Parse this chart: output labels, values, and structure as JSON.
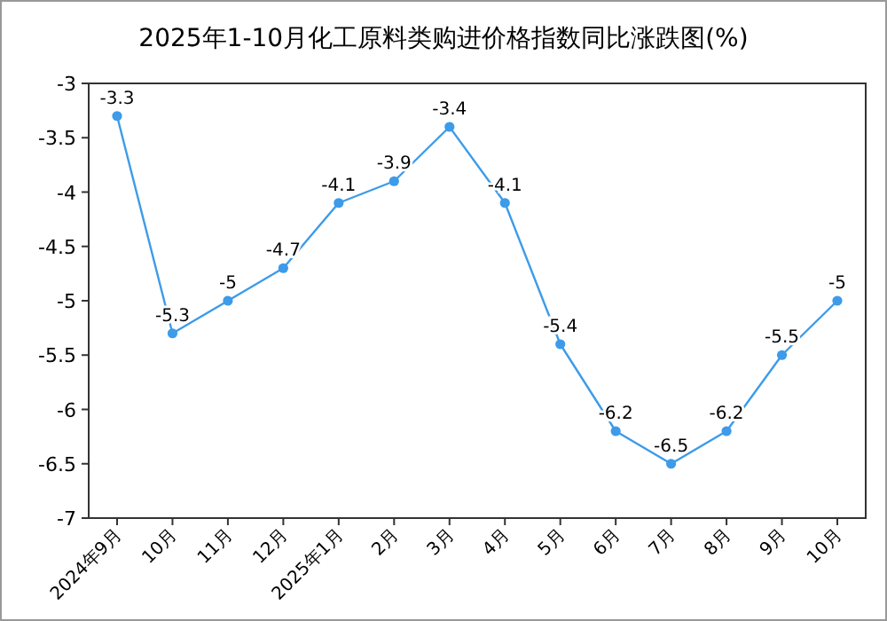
{
  "chart_data": {
    "type": "line",
    "title": "2025年1-10月化工原料类购进价格指数同比涨跌图(%)",
    "categories": [
      "2024年9月",
      "10月",
      "11月",
      "12月",
      "2025年1月",
      "2月",
      "3月",
      "4月",
      "5月",
      "6月",
      "7月",
      "8月",
      "9月",
      "10月"
    ],
    "series": [
      {
        "color": "#3d9be9",
        "values": [
          -3.3,
          -5.3,
          -5,
          -4.7,
          -4.1,
          -3.9,
          -3.4,
          -4.1,
          -5.4,
          -6.2,
          -6.5,
          -6.2,
          -5.5,
          -5
        ]
      }
    ],
    "ylim": [
      -7,
      -3
    ],
    "yticks": [
      -3,
      -3.5,
      -4,
      -4.5,
      -5,
      -5.5,
      -6,
      -6.5,
      -7
    ],
    "marker": "circle",
    "data_labels": true,
    "grid": false
  }
}
